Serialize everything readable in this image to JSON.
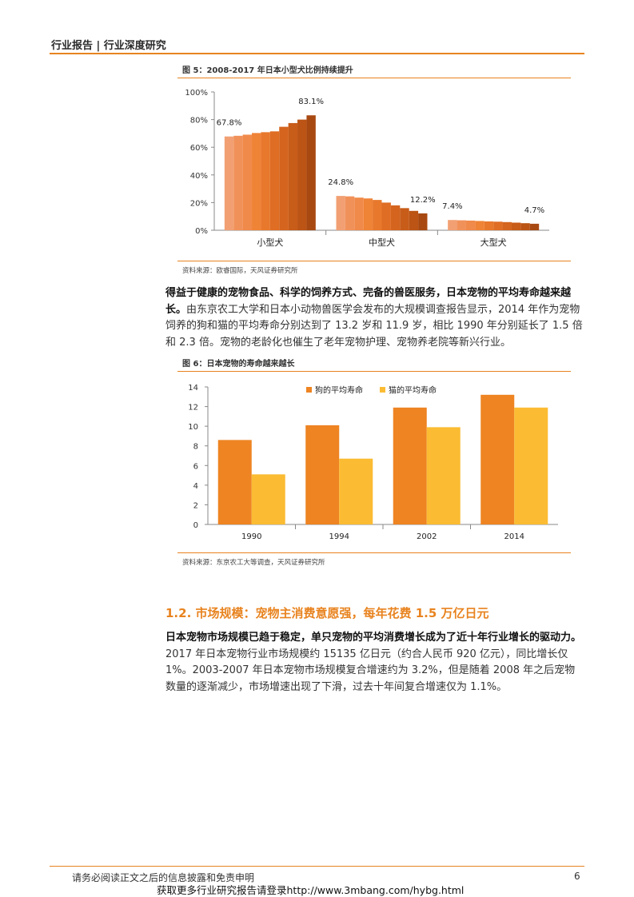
{
  "header": {
    "title": "行业报告 | 行业深度研究"
  },
  "colors": {
    "accent": "#e8831f",
    "dog": "#ee8422",
    "cat": "#fbbc33"
  },
  "figure5": {
    "title": "图 5：2008-2017 年日本小型犬比例持续提升",
    "source": "资料来源：欧睿国际，天风证券研究所",
    "chart_data": {
      "type": "bar",
      "ylim": [
        0,
        100
      ],
      "yticks": [
        "0%",
        "20%",
        "40%",
        "60%",
        "80%",
        "100%"
      ],
      "groups": [
        {
          "name": "小型犬",
          "values": [
            67.8,
            68.3,
            69.1,
            70.3,
            70.9,
            71.5,
            74.8,
            77.5,
            80.0,
            83.1
          ],
          "labels": [
            "67.8%",
            "83.1%"
          ]
        },
        {
          "name": "中型犬",
          "values": [
            24.8,
            24.5,
            23.6,
            23.0,
            21.9,
            20.0,
            18.0,
            16.0,
            14.0,
            12.2
          ],
          "labels": [
            "24.8%",
            "12.2%"
          ]
        },
        {
          "name": "大型犬",
          "values": [
            7.4,
            7.2,
            7.0,
            6.7,
            6.4,
            6.2,
            5.9,
            5.5,
            5.1,
            4.7
          ],
          "labels": [
            "7.4%",
            "4.7%"
          ]
        }
      ],
      "bar_colors": [
        "#f2a073",
        "#f1915a",
        "#f08a4a",
        "#ef8336",
        "#e8782c",
        "#df6d24",
        "#d4641e",
        "#c85c19",
        "#bb5415",
        "#a84912"
      ]
    }
  },
  "para1": {
    "bold": "得益于健康的宠物食品、科学的饲养方式、完备的兽医服务，日本宠物的平均寿命越来越长。",
    "text": "由东京农工大学和日本小动物兽医学会发布的大规模调查报告显示，2014 年作为宠物饲养的狗和猫的平均寿命分别达到了 13.2 岁和 11.9 岁，相比 1990 年分别延长了 1.5 倍和 2.3 倍。宠物的老龄化也催生了老年宠物护理、宠物养老院等新兴行业。"
  },
  "figure6": {
    "title": "图 6：日本宠物的寿命越来越长",
    "source": "资料来源：东京农工大等调查，天风证券研究所",
    "chart_data": {
      "type": "bar",
      "categories": [
        "1990",
        "1994",
        "2002",
        "2014"
      ],
      "ylim": [
        0,
        14
      ],
      "yticks": [
        "0",
        "2",
        "4",
        "6",
        "8",
        "10",
        "12",
        "14"
      ],
      "series": [
        {
          "name": "狗的平均寿命",
          "values": [
            8.6,
            10.1,
            11.9,
            13.2
          ]
        },
        {
          "name": "猫的平均寿命",
          "values": [
            5.1,
            6.7,
            9.9,
            11.9
          ]
        }
      ],
      "legend": "top-right"
    }
  },
  "section": {
    "heading": "1.2. 市场规模：宠物主消费意愿强，每年花费 1.5 万亿日元"
  },
  "para2": {
    "bold": "日本宠物市场规模已趋于稳定，单只宠物的平均消费增长成为了近十年行业增长的驱动力。",
    "text": "2017 年日本宠物行业市场规模约 15135 亿日元（约合人民币 920 亿元），同比增长仅 1%。2003-2007 年日本宠物市场规模复合增速约为 3.2%，但是随着 2008 年之后宠物数量的逐渐减少，市场增速出现了下滑，过去十年间复合增速仅为 1.1%。"
  },
  "footer": {
    "disclaimer": "请务必阅读正文之后的信息披露和免责申明",
    "page": "6",
    "link": "获取更多行业研究报告请登录http://www.3mbang.com/hybg.html"
  }
}
